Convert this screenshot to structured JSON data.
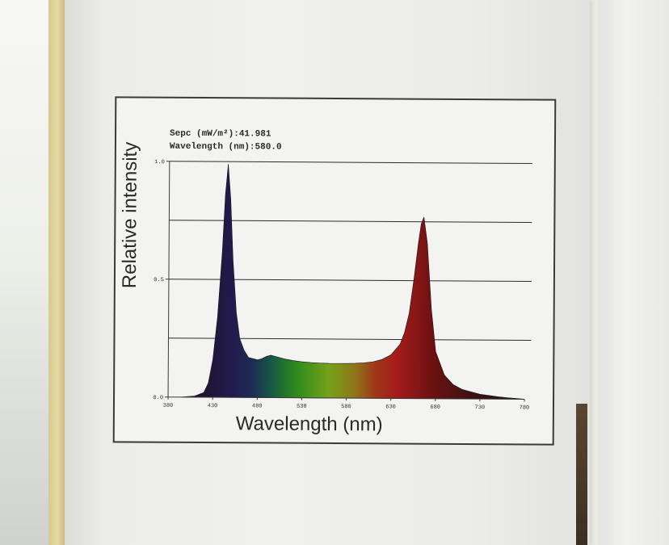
{
  "info": {
    "spec_label": "Sepc (mW/m²):41.981",
    "wavelength_label": "Wavelength (nm):580.0"
  },
  "chart_data": {
    "type": "area",
    "title": "",
    "xlabel": "Wavelength (nm)",
    "ylabel": "Relative intensity",
    "xlim": [
      380,
      780
    ],
    "ylim": [
      0,
      1.0
    ],
    "x_ticks": [
      "380",
      "430",
      "480",
      "530",
      "580",
      "630",
      "680",
      "730",
      "780"
    ],
    "y_ticks": [
      "0.0",
      "0.5",
      "1.0"
    ],
    "gridlines_y": [
      0.25,
      0.5,
      0.75,
      1.0
    ],
    "grid": true,
    "fill": "visible-spectrum color gradient",
    "series": [
      {
        "x": [
          395,
          410,
          420,
          425,
          430,
          435,
          440,
          443,
          446,
          449,
          452,
          456,
          460,
          465,
          470,
          475,
          480,
          485,
          490,
          495,
          500,
          510,
          520,
          530,
          540,
          550,
          560,
          570,
          580,
          590,
          600,
          610,
          620,
          630,
          640,
          645,
          650,
          655,
          660,
          663,
          666,
          670,
          675,
          680,
          690,
          700,
          710,
          720,
          730,
          740,
          750,
          760,
          770,
          780
        ],
        "y": [
          0.0,
          0.005,
          0.02,
          0.06,
          0.16,
          0.34,
          0.62,
          0.86,
          0.99,
          0.84,
          0.58,
          0.36,
          0.25,
          0.2,
          0.17,
          0.165,
          0.16,
          0.165,
          0.175,
          0.18,
          0.175,
          0.165,
          0.158,
          0.153,
          0.15,
          0.148,
          0.147,
          0.147,
          0.147,
          0.148,
          0.15,
          0.155,
          0.165,
          0.185,
          0.23,
          0.28,
          0.36,
          0.5,
          0.66,
          0.74,
          0.77,
          0.66,
          0.38,
          0.2,
          0.1,
          0.06,
          0.04,
          0.03,
          0.02,
          0.015,
          0.01,
          0.006,
          0.003,
          0.0
        ]
      }
    ]
  }
}
